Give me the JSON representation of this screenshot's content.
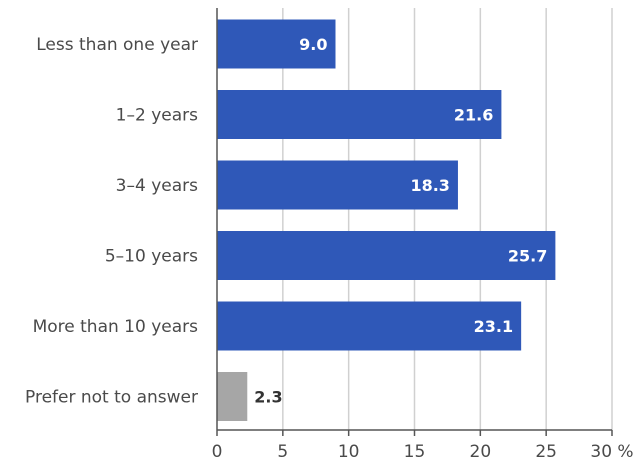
{
  "chart_data": {
    "type": "bar",
    "orientation": "horizontal",
    "categories": [
      "Less than one year",
      "1–2 years",
      "3–4 years",
      "5–10 years",
      "More than 10 years",
      "Prefer not to answer"
    ],
    "values": [
      9.0,
      21.6,
      18.3,
      25.7,
      23.1,
      2.3
    ],
    "value_labels": [
      "9.0",
      "21.6",
      "18.3",
      "25.7",
      "23.1",
      "2.3"
    ],
    "x_ticks": [
      "0",
      "5",
      "10",
      "15",
      "20",
      "25",
      "30"
    ],
    "x_unit": "%",
    "xlim": [
      0,
      30
    ],
    "grid": "vertical",
    "colors": {
      "bar": "#2f58b8",
      "bar_muted": "#a6a6a6",
      "label_on_bar": "#ffffff",
      "label_outside": "#333333",
      "grid": "#d0d0d0",
      "axis": "#555555"
    },
    "muted_categories": [
      "Prefer not to answer"
    ]
  }
}
